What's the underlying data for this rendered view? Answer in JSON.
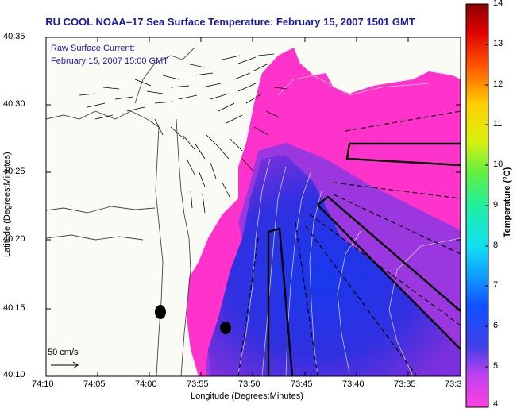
{
  "title": "RU COOL  NOAA–17  Sea Surface Temperature:  February 15, 2007 1501 GMT",
  "annotation": {
    "line1": "Raw Surface Current:",
    "line2": "February 15, 2007 15:00 GMT"
  },
  "axes": {
    "xlabel": "Longitude (Degrees:Minutes)",
    "ylabel": "Latitude (Degrees:Minutes)",
    "x_ticks": [
      "74:10",
      "74:05",
      "74:00",
      "73:55",
      "73:50",
      "73:45",
      "73:40",
      "73:35",
      "73:3"
    ],
    "y_ticks": [
      "40:35",
      "40:30",
      "40:25",
      "40:20",
      "40:15",
      "40:10"
    ]
  },
  "colorbar": {
    "label": "Temperature (°C)",
    "ticks": [
      "14",
      "13",
      "12",
      "11",
      "10",
      "9",
      "8",
      "7",
      "6",
      "5",
      "4"
    ],
    "range": [
      4,
      14
    ]
  },
  "scale": {
    "label": "50 cm/s"
  },
  "colors": {
    "title_blue": "#1a1aa8",
    "land": "#fbfbf6",
    "warm_water": "#ff33cc",
    "cold_water": "#1e40e8"
  }
}
